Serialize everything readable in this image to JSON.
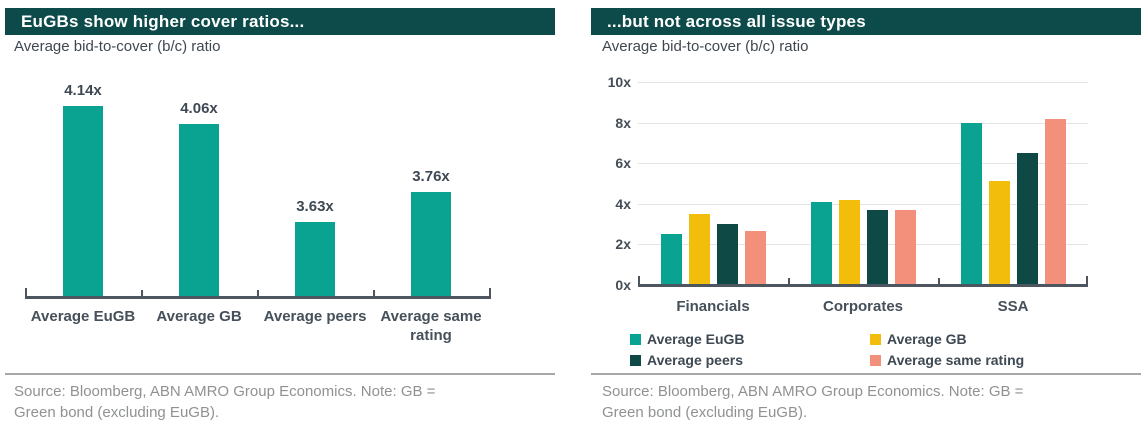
{
  "colors": {
    "header_bg": "#0d4b4b",
    "header_text": "#ffffff",
    "teal": "#0aa392",
    "yellow": "#f2bd0b",
    "dark_teal": "#0e4946",
    "salmon": "#f2907c",
    "axis": "#4d565e",
    "gridline": "#e4e4e4",
    "label_text": "#3e4953",
    "source_text": "#8f9193"
  },
  "chart_data": [
    {
      "type": "bar",
      "title": "EuGBs show higher cover ratios...",
      "subtitle": "Average bid-to-cover (b/c) ratio",
      "categories": [
        "Average EuGB",
        "Average GB",
        "Average peers",
        "Average same rating"
      ],
      "values": [
        4.14,
        4.06,
        3.63,
        3.76
      ],
      "data_labels": [
        "4.14x",
        "4.06x",
        "3.63x",
        "3.76x"
      ],
      "value_suffix": "x",
      "bar_color": "#0aa392",
      "baseline_value": 3.3,
      "ylim": [
        3.3,
        4.35
      ],
      "grid": false,
      "axis_labels_visible": false,
      "source": "Source: Bloomberg, ABN AMRO Group Economics. Note: GB = Green bond (excluding EuGB)."
    },
    {
      "type": "bar",
      "title": "...but not across all issue types",
      "subtitle": "Average bid-to-cover (b/c) ratio",
      "categories": [
        "Financials",
        "Corporates",
        "SSA"
      ],
      "series": [
        {
          "name": "Average EuGB",
          "color": "#0aa392",
          "values": [
            2.5,
            4.1,
            8.0
          ]
        },
        {
          "name": "Average GB",
          "color": "#f2bd0b",
          "values": [
            3.5,
            4.2,
            5.1
          ]
        },
        {
          "name": "Average peers",
          "color": "#0e4946",
          "values": [
            3.0,
            3.7,
            6.5
          ]
        },
        {
          "name": "Average same rating",
          "color": "#f2907c",
          "values": [
            2.65,
            3.7,
            8.2
          ]
        }
      ],
      "ylim": [
        0,
        10
      ],
      "ytick_values": [
        0,
        2,
        4,
        6,
        8,
        10
      ],
      "ytick_labels": [
        "0x",
        "2x",
        "4x",
        "6x",
        "8x",
        "10x"
      ],
      "grid": true,
      "legend_position": "bottom",
      "source": "Source: Bloomberg, ABN AMRO Group Economics. Note: GB = Green bond (excluding EuGB)."
    }
  ]
}
